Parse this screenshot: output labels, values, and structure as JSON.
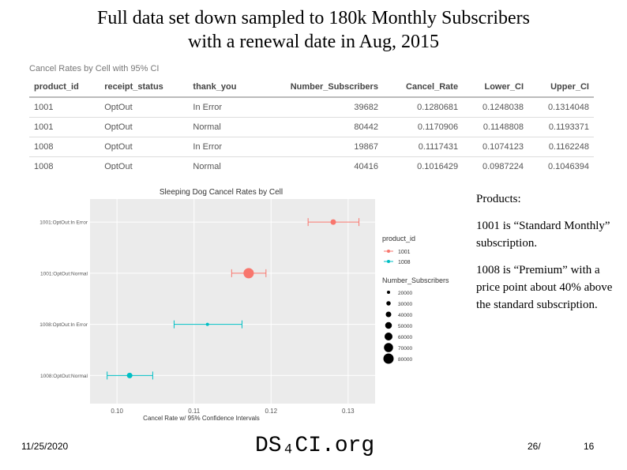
{
  "slide": {
    "title_line1": "Full data set down sampled to 180k Monthly Subscribers",
    "title_line2": "with a renewal date in Aug, 2015"
  },
  "table": {
    "caption": "Cancel Rates by Cell with 95% CI",
    "headers": [
      "product_id",
      "receipt_status",
      "thank_you",
      "Number_Subscribers",
      "Cancel_Rate",
      "Lower_CI",
      "Upper_CI"
    ],
    "rows": [
      [
        "1001",
        "OptOut",
        "In Error",
        "39682",
        "0.1280681",
        "0.1248038",
        "0.1314048"
      ],
      [
        "1001",
        "OptOut",
        "Normal",
        "80442",
        "0.1170906",
        "0.1148808",
        "0.1193371"
      ],
      [
        "1008",
        "OptOut",
        "In Error",
        "19867",
        "0.1117431",
        "0.1074123",
        "0.1162248"
      ],
      [
        "1008",
        "OptOut",
        "Normal",
        "40416",
        "0.1016429",
        "0.0987224",
        "0.1046394"
      ]
    ]
  },
  "chart_data": {
    "type": "scatter",
    "title": "Sleeping Dog Cancel Rates by Cell",
    "xlabel": "Cancel Rate w/ 95% Confidence Intervals",
    "ylabel": "",
    "xlim": [
      0.0965,
      0.1335
    ],
    "xticks": [
      "0.10",
      "0.11",
      "0.12",
      "0.13"
    ],
    "xtick_values": [
      0.1,
      0.11,
      0.12,
      0.13
    ],
    "categories": [
      "1001:OptOut:In Error",
      "1001:OptOut:Normal",
      "1008:OptOut:In Error",
      "1008:OptOut:Normal"
    ],
    "series": [
      {
        "name": "1001",
        "color": "#f8766d",
        "points": [
          {
            "category": "1001:OptOut:In Error",
            "value": 0.1280681,
            "lower": 0.1248038,
            "upper": 0.1314048,
            "subscribers": 39682
          },
          {
            "category": "1001:OptOut:Normal",
            "value": 0.1170906,
            "lower": 0.1148808,
            "upper": 0.1193371,
            "subscribers": 80442
          }
        ]
      },
      {
        "name": "1008",
        "color": "#00bfc4",
        "points": [
          {
            "category": "1008:OptOut:In Error",
            "value": 0.1117431,
            "lower": 0.1074123,
            "upper": 0.1162248,
            "subscribers": 19867
          },
          {
            "category": "1008:OptOut:Normal",
            "value": 0.1016429,
            "lower": 0.0987224,
            "upper": 0.1046394,
            "subscribers": 40416
          }
        ]
      }
    ],
    "legend_color_title": "product_id",
    "legend_size_title": "Number_Subscribers",
    "legend_size_values": [
      20000,
      30000,
      40000,
      50000,
      60000,
      70000,
      80000
    ],
    "legend_size_labels": [
      "20000",
      "30000",
      "40000",
      "50000",
      "60000",
      "70000",
      "80000"
    ]
  },
  "notes": {
    "heading": "Products:",
    "p1": "1001 is “Standard Monthly” subscription.",
    "p2": "1008 is “Premium” with a price point about 40% above the standard subscription."
  },
  "footer": {
    "date": "11/25/2020",
    "logo": "DS₄CI.org",
    "page": "26/",
    "number": "16"
  }
}
